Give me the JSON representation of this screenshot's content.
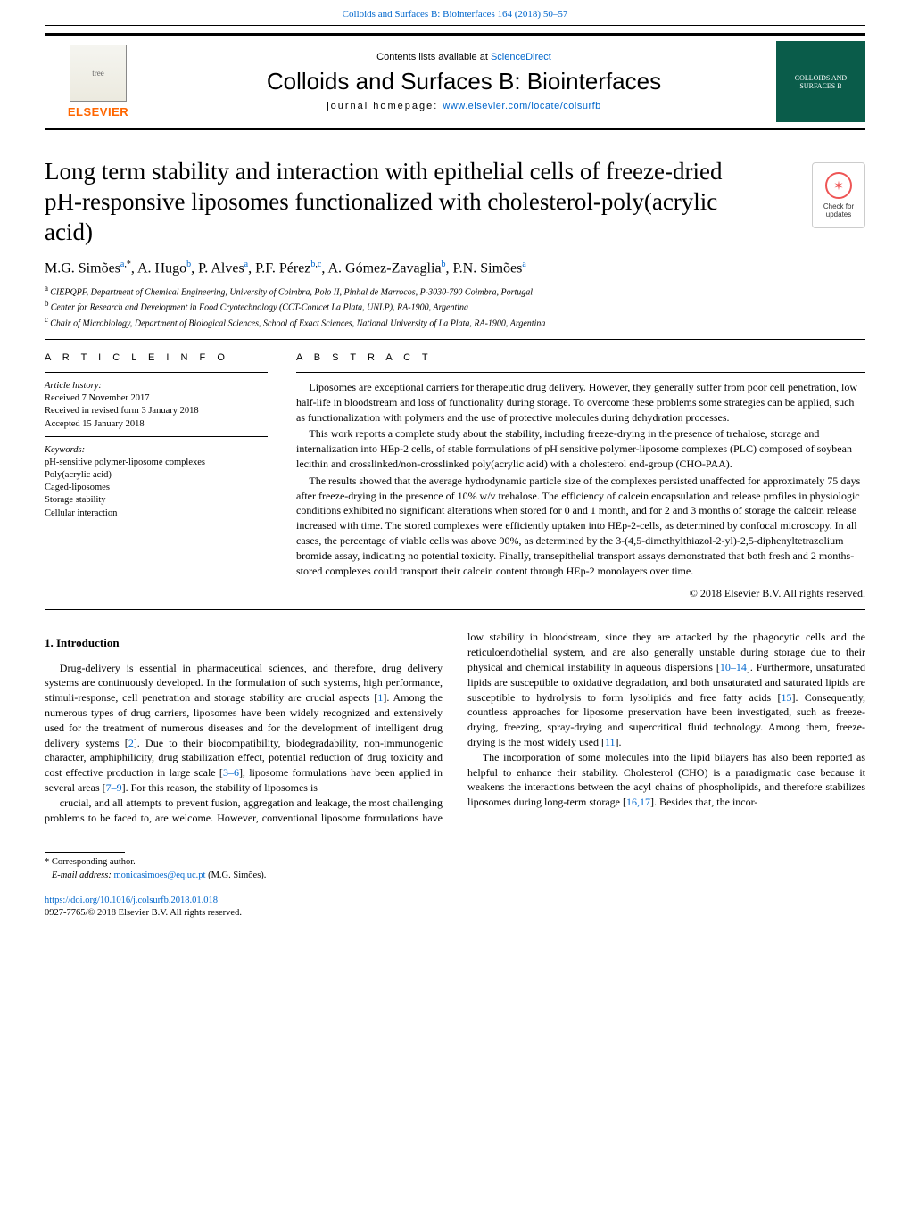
{
  "journal_ref_text": "Colloids and Surfaces B: Biointerfaces 164 (2018) 50–57",
  "header": {
    "contents_prefix": "Contents lists available at ",
    "contents_link": "ScienceDirect",
    "journal_name": "Colloids and Surfaces B: Biointerfaces",
    "homepage_prefix": "journal homepage: ",
    "homepage_link": "www.elsevier.com/locate/colsurfb",
    "publisher_logo_text": "ELSEVIER",
    "cover_caption": "COLLOIDS AND SURFACES B"
  },
  "check_updates": {
    "line1": "Check for",
    "line2": "updates"
  },
  "title": "Long term stability and interaction with epithelial cells of freeze-dried pH-responsive liposomes functionalized with cholesterol-poly(acrylic acid)",
  "authors_html": "M.G. Simões|a,*|, A. Hugo|b|, P. Alves|a|, P.F. Pérez|b,c|, A. Gómez-Zavaglia|b|, P.N. Simões|a|",
  "authors": [
    {
      "name": "M.G. Simões",
      "sup": "a,*"
    },
    {
      "name": "A. Hugo",
      "sup": "b"
    },
    {
      "name": "P. Alves",
      "sup": "a"
    },
    {
      "name": "P.F. Pérez",
      "sup": "b,c"
    },
    {
      "name": "A. Gómez-Zavaglia",
      "sup": "b"
    },
    {
      "name": "P.N. Simões",
      "sup": "a"
    }
  ],
  "affiliations": [
    {
      "sup": "a",
      "text": "CIEPQPF, Department of Chemical Engineering, University of Coimbra, Polo II, Pinhal de Marrocos, P-3030-790 Coimbra, Portugal"
    },
    {
      "sup": "b",
      "text": "Center for Research and Development in Food Cryotechnology (CCT-Conicet La Plata, UNLP), RA-1900, Argentina"
    },
    {
      "sup": "c",
      "text": "Chair of Microbiology, Department of Biological Sciences, School of Exact Sciences, National University of La Plata, RA-1900, Argentina"
    }
  ],
  "sections": {
    "article_info_heading": "A R T I C L E    I N F O",
    "abstract_heading": "A B S T R A C T"
  },
  "article_history": {
    "label": "Article history:",
    "received": "Received 7 November 2017",
    "revised": "Received in revised form 3 January 2018",
    "accepted": "Accepted 15 January 2018"
  },
  "keywords": {
    "label": "Keywords:",
    "items": [
      "pH-sensitive polymer-liposome complexes",
      "Poly(acrylic acid)",
      "Caged-liposomes",
      "Storage stability",
      "Cellular interaction"
    ]
  },
  "abstract": {
    "p1": "Liposomes are exceptional carriers for therapeutic drug delivery. However, they generally suffer from poor cell penetration, low half-life in bloodstream and loss of functionality during storage. To overcome these problems some strategies can be applied, such as functionalization with polymers and the use of protective molecules during dehydration processes.",
    "p2": "This work reports a complete study about the stability, including freeze-drying in the presence of trehalose, storage and internalization into HEp-2 cells, of stable formulations of pH sensitive polymer-liposome complexes (PLC) composed of soybean lecithin and crosslinked/non-crosslinked poly(acrylic acid) with a cholesterol end-group (CHO-PAA).",
    "p3": "The results showed that the average hydrodynamic particle size of the complexes persisted unaffected for approximately 75 days after freeze-drying in the presence of 10% w/v trehalose. The efficiency of calcein encapsulation and release profiles in physiologic conditions exhibited no significant alterations when stored for 0 and 1 month, and for 2 and 3 months of storage the calcein release increased with time. The stored complexes were efficiently uptaken into HEp-2-cells, as determined by confocal microscopy. In all cases, the percentage of viable cells was above 90%, as determined by the 3-(4,5-dimethylthiazol-2-yl)-2,5-diphenyltetrazolium bromide assay, indicating no potential toxicity. Finally, transepithelial transport assays demonstrated that both fresh and 2 months-stored complexes could transport their calcein content through HEp-2 monolayers over time.",
    "copyright": "© 2018 Elsevier B.V. All rights reserved."
  },
  "introduction": {
    "heading": "1.  Introduction",
    "p1": "Drug-delivery is essential in pharmaceutical sciences, and therefore, drug delivery systems are continuously developed. In the formulation of such systems, high performance, stimuli-response, cell penetration and storage stability are crucial aspects [|1|]. Among the numerous types of drug carriers, liposomes have been widely recognized and extensively used for the treatment of numerous diseases and for the development of intelligent drug delivery systems [|2|]. Due to their biocompatibility, biodegradability, non-immunogenic character, amphiphilicity, drug stabilization effect, potential reduction of drug toxicity and cost effective production in large scale [|3–6|], liposome formulations have been applied in several areas [|7–9|]. For this reason, the stability of liposomes is",
    "p2": "crucial, and all attempts to prevent fusion, aggregation and leakage, the most challenging problems to be faced to, are welcome. However, conventional liposome formulations have low stability in bloodstream, since they are attacked by the phagocytic cells and the reticuloendothelial system, and are also generally unstable during storage due to their physical and chemical instability in aqueous dispersions [|10–14|]. Furthermore, unsaturated lipids are susceptible to oxidative degradation, and both unsaturated and saturated lipids are susceptible to hydrolysis to form lysolipids and free fatty acids [|15|]. Consequently, countless approaches for liposome preservation have been investigated, such as freeze-drying, freezing, spray-drying and supercritical fluid technology. Among them, freeze-drying is the most widely used [|11|].",
    "p3": "The incorporation of some molecules into the lipid bilayers has also been reported as helpful to enhance their stability. Cholesterol (CHO) is a paradigmatic case because it weakens the interactions between the acyl chains of phospholipids, and therefore stabilizes liposomes during long-term storage [|16,17|]. Besides that, the incor-"
  },
  "footnotes": {
    "corresponding": "Corresponding author.",
    "email_label": "E-mail address: ",
    "email": "monicasimoes@eq.uc.pt",
    "email_suffix": " (M.G. Simões)."
  },
  "doi": {
    "url": "https://doi.org/10.1016/j.colsurfb.2018.01.018",
    "line2": "0927-7765/© 2018 Elsevier B.V. All rights reserved."
  },
  "colors": {
    "link": "#0066cc",
    "elsevier_orange": "#ff6600",
    "cover_green": "#0a5c4a"
  }
}
